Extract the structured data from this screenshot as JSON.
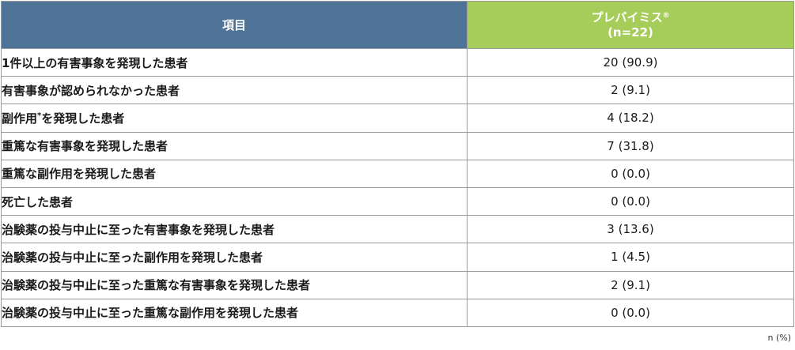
{
  "header": {
    "item_label": "項目",
    "drug_name": "プレバイミス",
    "drug_mark": "®",
    "drug_n": "(n=22)"
  },
  "rows": [
    {
      "label": "1件以上の有害事象を発現した患者",
      "value": "20 (90.9)"
    },
    {
      "label": "有害事象が認められなかった患者",
      "value": "2 (9.1)"
    },
    {
      "label_main": "副作用",
      "label_mark": "*",
      "label_rest": "を発現した患者",
      "value": "4 (18.2)"
    },
    {
      "label": "重篤な有害事象を発現した患者",
      "value": "7 (31.8)"
    },
    {
      "label": "重篤な副作用を発現した患者",
      "value": "0 (0.0)"
    },
    {
      "label": "死亡した患者",
      "value": "0 (0.0)"
    },
    {
      "label": "治験薬の投与中止に至った有害事象を発現した患者",
      "value": "3 (13.6)"
    },
    {
      "label": "治験薬の投与中止に至った副作用を発現した患者",
      "value": "1 (4.5)"
    },
    {
      "label": "治験薬の投与中止に至った重篤な有害事象を発現した患者",
      "value": "2 (9.1)"
    },
    {
      "label": "治験薬の投与中止に至った重篤な副作用を発現した患者",
      "value": "0 (0.0)"
    }
  ],
  "footnote": "n (%)",
  "colors": {
    "header_left": "#4e7396",
    "header_right": "#a6cc5a",
    "border": "#9a9a9a"
  }
}
